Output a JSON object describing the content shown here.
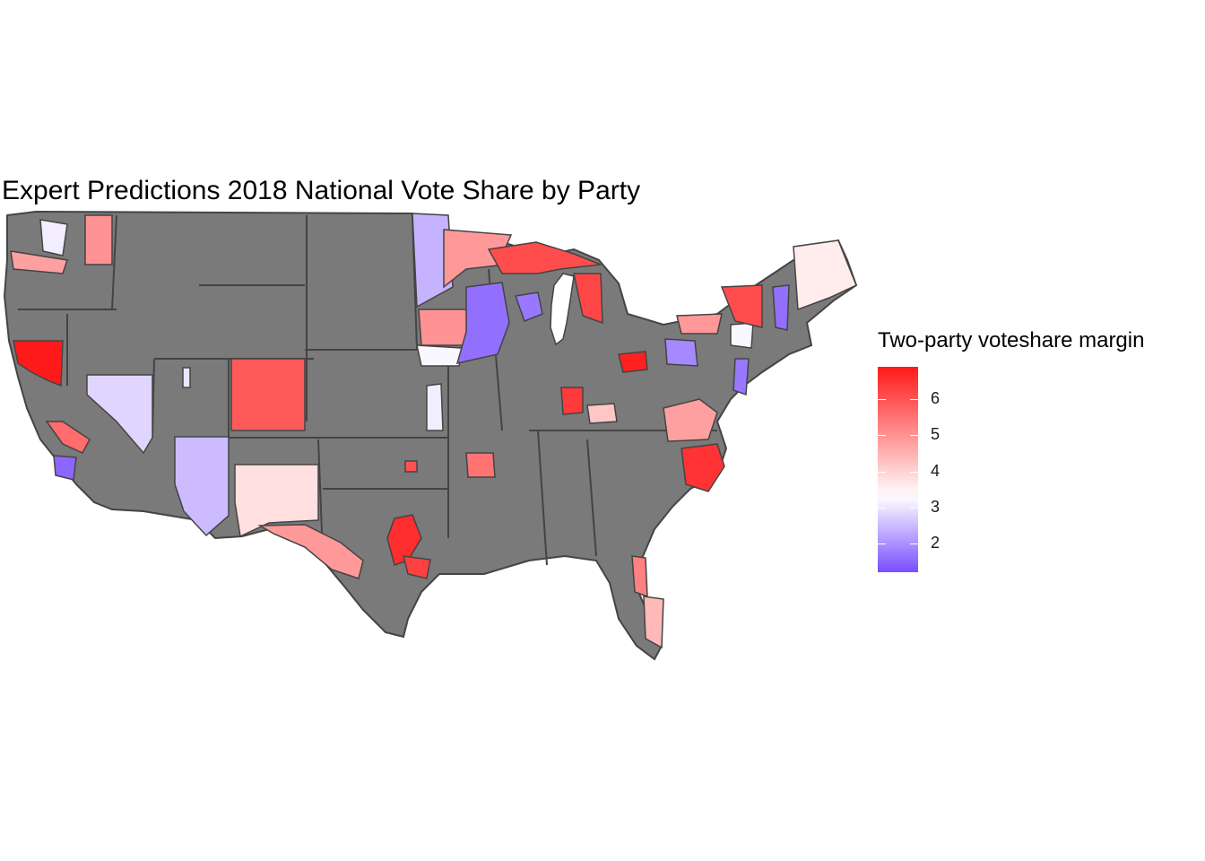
{
  "title": "Expert Predictions 2018 National Vote Share by Party",
  "legend": {
    "title": "Two-party voteshare margin",
    "min": 1.2,
    "max": 6.9,
    "breaks": [
      2,
      3,
      4,
      5,
      6
    ],
    "colors": {
      "low": "#7a4dff",
      "mid": "#ffffff",
      "high": "#ff1a1a",
      "midpoint": 3.3
    }
  },
  "colors": {
    "no_data": "#7a7a7a",
    "border": "#444444"
  },
  "map_data": {
    "districts": [
      {
        "id": "nv-n",
        "value": 2.8
      },
      {
        "id": "az-s",
        "value": 2.5
      },
      {
        "id": "nm",
        "value": 3.8
      },
      {
        "id": "tx-w",
        "value": 4.9
      },
      {
        "id": "tx-c",
        "value": 6.6
      },
      {
        "id": "tx-hou",
        "value": 6.3
      },
      {
        "id": "ca-n",
        "value": 6.9
      },
      {
        "id": "ca-c",
        "value": 5.6
      },
      {
        "id": "ca-la",
        "value": 1.5
      },
      {
        "id": "wa-1",
        "value": 3.1
      },
      {
        "id": "wa-2",
        "value": 4.8
      },
      {
        "id": "id-n",
        "value": 5.0
      },
      {
        "id": "co",
        "value": 5.9
      },
      {
        "id": "ut-s",
        "value": 3.0
      },
      {
        "id": "mn-w",
        "value": 2.4
      },
      {
        "id": "mn-n",
        "value": 4.9
      },
      {
        "id": "ia-n",
        "value": 5.0
      },
      {
        "id": "ia-s",
        "value": 3.2
      },
      {
        "id": "wi-s",
        "value": 1.6
      },
      {
        "id": "il-n",
        "value": 1.7
      },
      {
        "id": "mi-up",
        "value": 6.1
      },
      {
        "id": "mi-w",
        "value": 6.2
      },
      {
        "id": "oh-c",
        "value": 6.8
      },
      {
        "id": "pa",
        "value": 1.9
      },
      {
        "id": "ny-up",
        "value": 4.9
      },
      {
        "id": "ny-e",
        "value": 3.2
      },
      {
        "id": "vt",
        "value": 6.1
      },
      {
        "id": "nh",
        "value": 1.6
      },
      {
        "id": "me",
        "value": 3.6
      },
      {
        "id": "nj",
        "value": 1.7
      },
      {
        "id": "va",
        "value": 4.8
      },
      {
        "id": "nc",
        "value": 6.5
      },
      {
        "id": "ky",
        "value": 4.2
      },
      {
        "id": "in-s",
        "value": 6.4
      },
      {
        "id": "ar",
        "value": 5.5
      },
      {
        "id": "fl-e",
        "value": 5.3
      },
      {
        "id": "fl-s",
        "value": 4.4
      },
      {
        "id": "ok",
        "value": 6.0
      },
      {
        "id": "mo-e",
        "value": 3.1
      }
    ]
  }
}
